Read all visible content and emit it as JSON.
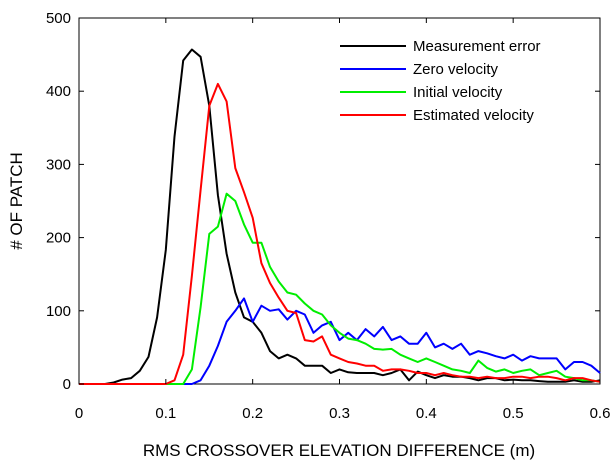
{
  "chart_data": {
    "type": "line",
    "title": "",
    "xlabel": "RMS CROSSOVER ELEVATION DIFFERENCE (m)",
    "ylabel": "# OF PATCH",
    "xlim": [
      0,
      0.6
    ],
    "ylim": [
      0,
      500
    ],
    "xticks": [
      0,
      0.1,
      0.2,
      0.3,
      0.4,
      0.5,
      0.6
    ],
    "yticks": [
      0,
      100,
      200,
      300,
      400,
      500
    ],
    "xtick_labels": [
      "0",
      "0.1",
      "0.2",
      "0.3",
      "0.4",
      "0.5",
      "0.6"
    ],
    "ytick_labels": [
      "0",
      "100",
      "200",
      "300",
      "400",
      "500"
    ],
    "grid": false,
    "legend_position": "top-right",
    "series": [
      {
        "name": "Measurement error",
        "color": "#000000",
        "x": [
          0,
          0.01,
          0.02,
          0.03,
          0.04,
          0.05,
          0.06,
          0.07,
          0.08,
          0.09,
          0.1,
          0.11,
          0.12,
          0.13,
          0.14,
          0.15,
          0.16,
          0.17,
          0.18,
          0.19,
          0.2,
          0.21,
          0.22,
          0.23,
          0.24,
          0.25,
          0.26,
          0.27,
          0.28,
          0.29,
          0.3,
          0.31,
          0.32,
          0.33,
          0.34,
          0.35,
          0.36,
          0.37,
          0.38,
          0.39,
          0.4,
          0.41,
          0.42,
          0.43,
          0.44,
          0.45,
          0.46,
          0.47,
          0.48,
          0.49,
          0.5,
          0.51,
          0.52,
          0.53,
          0.54,
          0.55,
          0.56,
          0.57,
          0.58,
          0.59,
          0.6
        ],
        "values": [
          0,
          0,
          0,
          0,
          2,
          6,
          8,
          18,
          37,
          91,
          183,
          338,
          442,
          457,
          447,
          380,
          258,
          178,
          125,
          91,
          85,
          70,
          45,
          35,
          40,
          35,
          25,
          25,
          25,
          15,
          20,
          16,
          15,
          15,
          15,
          12,
          15,
          20,
          5,
          17,
          12,
          8,
          12,
          10,
          10,
          8,
          5,
          8,
          8,
          5,
          6,
          5,
          5,
          4,
          3,
          3,
          3,
          5,
          3,
          3,
          5
        ]
      },
      {
        "name": "Zero velocity",
        "color": "#0000ff",
        "x": [
          0,
          0.01,
          0.02,
          0.03,
          0.04,
          0.05,
          0.06,
          0.07,
          0.08,
          0.09,
          0.1,
          0.11,
          0.12,
          0.13,
          0.14,
          0.15,
          0.16,
          0.17,
          0.18,
          0.19,
          0.2,
          0.21,
          0.22,
          0.23,
          0.24,
          0.25,
          0.26,
          0.27,
          0.28,
          0.29,
          0.3,
          0.31,
          0.32,
          0.33,
          0.34,
          0.35,
          0.36,
          0.37,
          0.38,
          0.39,
          0.4,
          0.41,
          0.42,
          0.43,
          0.44,
          0.45,
          0.46,
          0.47,
          0.48,
          0.49,
          0.5,
          0.51,
          0.52,
          0.53,
          0.54,
          0.55,
          0.56,
          0.57,
          0.58,
          0.59,
          0.6
        ],
        "values": [
          0,
          0,
          0,
          0,
          0,
          0,
          0,
          0,
          0,
          0,
          0,
          0,
          0,
          0,
          5,
          25,
          52,
          85,
          100,
          117,
          85,
          107,
          100,
          102,
          88,
          100,
          95,
          70,
          80,
          85,
          60,
          70,
          60,
          75,
          65,
          78,
          60,
          65,
          55,
          55,
          70,
          50,
          55,
          48,
          55,
          40,
          45,
          42,
          38,
          35,
          40,
          32,
          38,
          35,
          35,
          35,
          20,
          30,
          30,
          25,
          15
        ]
      },
      {
        "name": "Initial velocity",
        "color": "#00ee00",
        "x": [
          0,
          0.01,
          0.02,
          0.03,
          0.04,
          0.05,
          0.06,
          0.07,
          0.08,
          0.09,
          0.1,
          0.11,
          0.12,
          0.13,
          0.14,
          0.15,
          0.16,
          0.17,
          0.18,
          0.19,
          0.2,
          0.21,
          0.22,
          0.23,
          0.24,
          0.25,
          0.26,
          0.27,
          0.28,
          0.29,
          0.3,
          0.31,
          0.32,
          0.33,
          0.34,
          0.35,
          0.36,
          0.37,
          0.38,
          0.39,
          0.4,
          0.41,
          0.42,
          0.43,
          0.44,
          0.45,
          0.46,
          0.47,
          0.48,
          0.49,
          0.5,
          0.51,
          0.52,
          0.53,
          0.54,
          0.55,
          0.56,
          0.57,
          0.58,
          0.59,
          0.6
        ],
        "values": [
          0,
          0,
          0,
          0,
          0,
          0,
          0,
          0,
          0,
          0,
          0,
          0,
          0,
          20,
          105,
          205,
          215,
          260,
          250,
          218,
          193,
          193,
          160,
          140,
          125,
          122,
          110,
          100,
          95,
          80,
          70,
          62,
          60,
          55,
          48,
          47,
          48,
          40,
          35,
          30,
          35,
          30,
          25,
          20,
          18,
          15,
          32,
          22,
          17,
          20,
          15,
          18,
          20,
          12,
          15,
          18,
          10,
          8,
          5,
          5,
          3
        ]
      },
      {
        "name": "Estimated velocity",
        "color": "#ff0000",
        "x": [
          0,
          0.01,
          0.02,
          0.03,
          0.04,
          0.05,
          0.06,
          0.07,
          0.08,
          0.09,
          0.1,
          0.11,
          0.12,
          0.13,
          0.14,
          0.15,
          0.16,
          0.17,
          0.18,
          0.19,
          0.2,
          0.21,
          0.22,
          0.23,
          0.24,
          0.25,
          0.26,
          0.27,
          0.28,
          0.29,
          0.3,
          0.31,
          0.32,
          0.33,
          0.34,
          0.35,
          0.36,
          0.37,
          0.38,
          0.39,
          0.4,
          0.41,
          0.42,
          0.43,
          0.44,
          0.45,
          0.46,
          0.47,
          0.48,
          0.49,
          0.5,
          0.51,
          0.52,
          0.53,
          0.54,
          0.55,
          0.56,
          0.57,
          0.58,
          0.59,
          0.6
        ],
        "values": [
          0,
          0,
          0,
          0,
          0,
          0,
          0,
          0,
          0,
          0,
          0,
          5,
          40,
          148,
          265,
          380,
          410,
          386,
          295,
          262,
          227,
          165,
          138,
          118,
          100,
          97,
          60,
          58,
          65,
          40,
          35,
          30,
          28,
          25,
          25,
          18,
          20,
          20,
          18,
          15,
          15,
          12,
          15,
          12,
          10,
          10,
          8,
          10,
          8,
          8,
          10,
          10,
          8,
          10,
          10,
          8,
          5,
          8,
          8,
          5,
          3
        ]
      }
    ]
  }
}
